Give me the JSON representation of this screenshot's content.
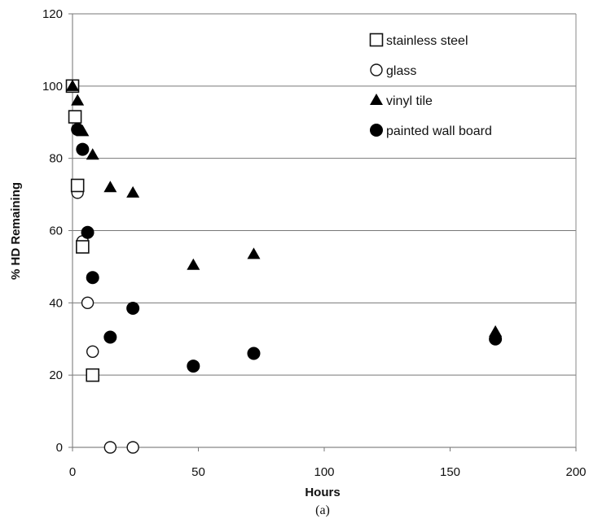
{
  "chart_data": {
    "type": "scatter",
    "title": "",
    "xlabel": "Hours",
    "ylabel": "% HD Remaining",
    "caption": "(a)",
    "xlim": [
      0,
      200
    ],
    "ylim": [
      0,
      120
    ],
    "x_ticks": [
      "0",
      "50",
      "100",
      "150",
      "200"
    ],
    "y_ticks": [
      "0",
      "20",
      "40",
      "60",
      "80",
      "100",
      "120"
    ],
    "grid": "horizontal",
    "legend_position": "top-right",
    "series": [
      {
        "name": "stainless steel",
        "marker": "open-square",
        "points": [
          [
            0,
            100
          ],
          [
            1,
            91.5
          ],
          [
            2,
            72.5
          ],
          [
            4,
            55.5
          ],
          [
            8,
            20
          ]
        ]
      },
      {
        "name": "glass",
        "marker": "open-circle",
        "points": [
          [
            0,
            100
          ],
          [
            2,
            70.5
          ],
          [
            4,
            57
          ],
          [
            6,
            40
          ],
          [
            8,
            26.5
          ],
          [
            15,
            0
          ],
          [
            24,
            0
          ]
        ]
      },
      {
        "name": "vinyl tile",
        "marker": "filled-triangle",
        "points": [
          [
            0,
            100
          ],
          [
            2,
            96
          ],
          [
            4,
            87.5
          ],
          [
            8,
            81
          ],
          [
            15,
            72
          ],
          [
            24,
            70.5
          ],
          [
            48,
            50.5
          ],
          [
            72,
            53.5
          ],
          [
            168,
            32
          ]
        ]
      },
      {
        "name": "painted wall board",
        "marker": "filled-circle",
        "points": [
          [
            2,
            88
          ],
          [
            4,
            82.5
          ],
          [
            6,
            59.5
          ],
          [
            8,
            47
          ],
          [
            15,
            30.5
          ],
          [
            24,
            38.5
          ],
          [
            48,
            22.5
          ],
          [
            72,
            26
          ],
          [
            168,
            30
          ]
        ]
      }
    ]
  }
}
